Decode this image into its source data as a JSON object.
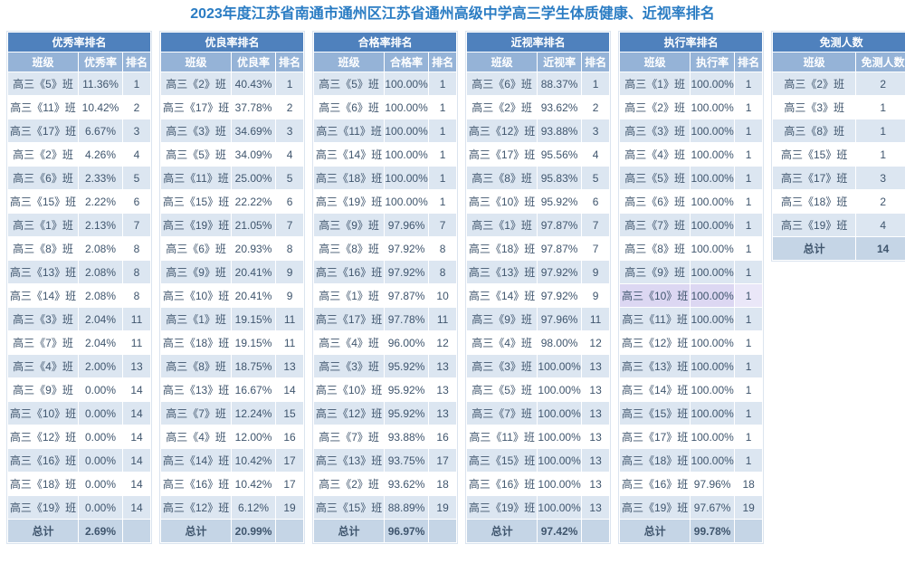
{
  "title": "2023年度江苏省南通市通州区江苏省通州高级中学高三学生体质健康、近视率排名",
  "total_label": "总计",
  "colors": {
    "title": "#2a7cc3",
    "header_bg": "#4f81bd",
    "subheader_bg": "#95b3d7",
    "row_odd_bg": "#dce6f1",
    "row_even_bg": "#ffffff",
    "total_row_bg": "#c5d5e6",
    "cell_text": "#3f556d",
    "highlight_row_bg": "#dcd7f2",
    "highlight_rank_bg": "#eae7f8"
  },
  "highlight": {
    "table_index": 4,
    "row_index": 9
  },
  "tables": [
    {
      "name": "优秀率排名",
      "columns": [
        "班级",
        "优秀率",
        "排名"
      ],
      "rows": [
        [
          "高三《5》班",
          "11.36%",
          "1"
        ],
        [
          "高三《11》班",
          "10.42%",
          "2"
        ],
        [
          "高三《17》班",
          "6.67%",
          "3"
        ],
        [
          "高三《2》班",
          "4.26%",
          "4"
        ],
        [
          "高三《6》班",
          "2.33%",
          "5"
        ],
        [
          "高三《15》班",
          "2.22%",
          "6"
        ],
        [
          "高三《1》班",
          "2.13%",
          "7"
        ],
        [
          "高三《8》班",
          "2.08%",
          "8"
        ],
        [
          "高三《13》班",
          "2.08%",
          "8"
        ],
        [
          "高三《14》班",
          "2.08%",
          "8"
        ],
        [
          "高三《3》班",
          "2.04%",
          "11"
        ],
        [
          "高三《7》班",
          "2.04%",
          "11"
        ],
        [
          "高三《4》班",
          "2.00%",
          "13"
        ],
        [
          "高三《9》班",
          "0.00%",
          "14"
        ],
        [
          "高三《10》班",
          "0.00%",
          "14"
        ],
        [
          "高三《12》班",
          "0.00%",
          "14"
        ],
        [
          "高三《16》班",
          "0.00%",
          "14"
        ],
        [
          "高三《18》班",
          "0.00%",
          "14"
        ],
        [
          "高三《19》班",
          "0.00%",
          "14"
        ]
      ],
      "total": [
        "总计",
        "2.69%",
        ""
      ]
    },
    {
      "name": "优良率排名",
      "columns": [
        "班级",
        "优良率",
        "排名"
      ],
      "rows": [
        [
          "高三《2》班",
          "40.43%",
          "1"
        ],
        [
          "高三《17》班",
          "37.78%",
          "2"
        ],
        [
          "高三《3》班",
          "34.69%",
          "3"
        ],
        [
          "高三《5》班",
          "34.09%",
          "4"
        ],
        [
          "高三《11》班",
          "25.00%",
          "5"
        ],
        [
          "高三《15》班",
          "22.22%",
          "6"
        ],
        [
          "高三《19》班",
          "21.05%",
          "7"
        ],
        [
          "高三《6》班",
          "20.93%",
          "8"
        ],
        [
          "高三《9》班",
          "20.41%",
          "9"
        ],
        [
          "高三《10》班",
          "20.41%",
          "9"
        ],
        [
          "高三《1》班",
          "19.15%",
          "11"
        ],
        [
          "高三《18》班",
          "19.15%",
          "11"
        ],
        [
          "高三《8》班",
          "18.75%",
          "13"
        ],
        [
          "高三《13》班",
          "16.67%",
          "14"
        ],
        [
          "高三《7》班",
          "12.24%",
          "15"
        ],
        [
          "高三《4》班",
          "12.00%",
          "16"
        ],
        [
          "高三《14》班",
          "10.42%",
          "17"
        ],
        [
          "高三《16》班",
          "10.42%",
          "17"
        ],
        [
          "高三《12》班",
          "6.12%",
          "19"
        ]
      ],
      "total": [
        "总计",
        "20.99%",
        ""
      ]
    },
    {
      "name": "合格率排名",
      "columns": [
        "班级",
        "合格率",
        "排名"
      ],
      "rows": [
        [
          "高三《5》班",
          "100.00%",
          "1"
        ],
        [
          "高三《6》班",
          "100.00%",
          "1"
        ],
        [
          "高三《11》班",
          "100.00%",
          "1"
        ],
        [
          "高三《14》班",
          "100.00%",
          "1"
        ],
        [
          "高三《18》班",
          "100.00%",
          "1"
        ],
        [
          "高三《19》班",
          "100.00%",
          "1"
        ],
        [
          "高三《9》班",
          "97.96%",
          "7"
        ],
        [
          "高三《8》班",
          "97.92%",
          "8"
        ],
        [
          "高三《16》班",
          "97.92%",
          "8"
        ],
        [
          "高三《1》班",
          "97.87%",
          "10"
        ],
        [
          "高三《17》班",
          "97.78%",
          "11"
        ],
        [
          "高三《4》班",
          "96.00%",
          "12"
        ],
        [
          "高三《3》班",
          "95.92%",
          "13"
        ],
        [
          "高三《10》班",
          "95.92%",
          "13"
        ],
        [
          "高三《12》班",
          "95.92%",
          "13"
        ],
        [
          "高三《7》班",
          "93.88%",
          "16"
        ],
        [
          "高三《13》班",
          "93.75%",
          "17"
        ],
        [
          "高三《2》班",
          "93.62%",
          "18"
        ],
        [
          "高三《15》班",
          "88.89%",
          "19"
        ]
      ],
      "total": [
        "总计",
        "96.97%",
        ""
      ]
    },
    {
      "name": "近视率排名",
      "columns": [
        "班级",
        "近视率",
        "排名"
      ],
      "rows": [
        [
          "高三《6》班",
          "88.37%",
          "1"
        ],
        [
          "高三《2》班",
          "93.62%",
          "2"
        ],
        [
          "高三《12》班",
          "93.88%",
          "3"
        ],
        [
          "高三《17》班",
          "95.56%",
          "4"
        ],
        [
          "高三《8》班",
          "95.83%",
          "5"
        ],
        [
          "高三《10》班",
          "95.92%",
          "6"
        ],
        [
          "高三《1》班",
          "97.87%",
          "7"
        ],
        [
          "高三《18》班",
          "97.87%",
          "7"
        ],
        [
          "高三《13》班",
          "97.92%",
          "9"
        ],
        [
          "高三《14》班",
          "97.92%",
          "9"
        ],
        [
          "高三《9》班",
          "97.96%",
          "11"
        ],
        [
          "高三《4》班",
          "98.00%",
          "12"
        ],
        [
          "高三《3》班",
          "100.00%",
          "13"
        ],
        [
          "高三《5》班",
          "100.00%",
          "13"
        ],
        [
          "高三《7》班",
          "100.00%",
          "13"
        ],
        [
          "高三《11》班",
          "100.00%",
          "13"
        ],
        [
          "高三《15》班",
          "100.00%",
          "13"
        ],
        [
          "高三《16》班",
          "100.00%",
          "13"
        ],
        [
          "高三《19》班",
          "100.00%",
          "13"
        ]
      ],
      "total": [
        "总计",
        "97.42%",
        ""
      ]
    },
    {
      "name": "执行率排名",
      "columns": [
        "班级",
        "执行率",
        "排名"
      ],
      "rows": [
        [
          "高三《1》班",
          "100.00%",
          "1"
        ],
        [
          "高三《2》班",
          "100.00%",
          "1"
        ],
        [
          "高三《3》班",
          "100.00%",
          "1"
        ],
        [
          "高三《4》班",
          "100.00%",
          "1"
        ],
        [
          "高三《5》班",
          "100.00%",
          "1"
        ],
        [
          "高三《6》班",
          "100.00%",
          "1"
        ],
        [
          "高三《7》班",
          "100.00%",
          "1"
        ],
        [
          "高三《8》班",
          "100.00%",
          "1"
        ],
        [
          "高三《9》班",
          "100.00%",
          "1"
        ],
        [
          "高三《10》班",
          "100.00%",
          "1"
        ],
        [
          "高三《11》班",
          "100.00%",
          "1"
        ],
        [
          "高三《12》班",
          "100.00%",
          "1"
        ],
        [
          "高三《13》班",
          "100.00%",
          "1"
        ],
        [
          "高三《14》班",
          "100.00%",
          "1"
        ],
        [
          "高三《15》班",
          "100.00%",
          "1"
        ],
        [
          "高三《17》班",
          "100.00%",
          "1"
        ],
        [
          "高三《18》班",
          "100.00%",
          "1"
        ],
        [
          "高三《16》班",
          "97.96%",
          "18"
        ],
        [
          "高三《19》班",
          "97.67%",
          "19"
        ]
      ],
      "total": [
        "总计",
        "99.78%",
        ""
      ]
    },
    {
      "name": "免测人数",
      "columns": [
        "班级",
        "免测人数"
      ],
      "rows": [
        [
          "高三《2》班",
          "2"
        ],
        [
          "高三《3》班",
          "1"
        ],
        [
          "高三《8》班",
          "1"
        ],
        [
          "高三《15》班",
          "1"
        ],
        [
          "高三《17》班",
          "3"
        ],
        [
          "高三《18》班",
          "2"
        ],
        [
          "高三《19》班",
          "4"
        ]
      ],
      "total": [
        "总计",
        "14"
      ]
    }
  ]
}
